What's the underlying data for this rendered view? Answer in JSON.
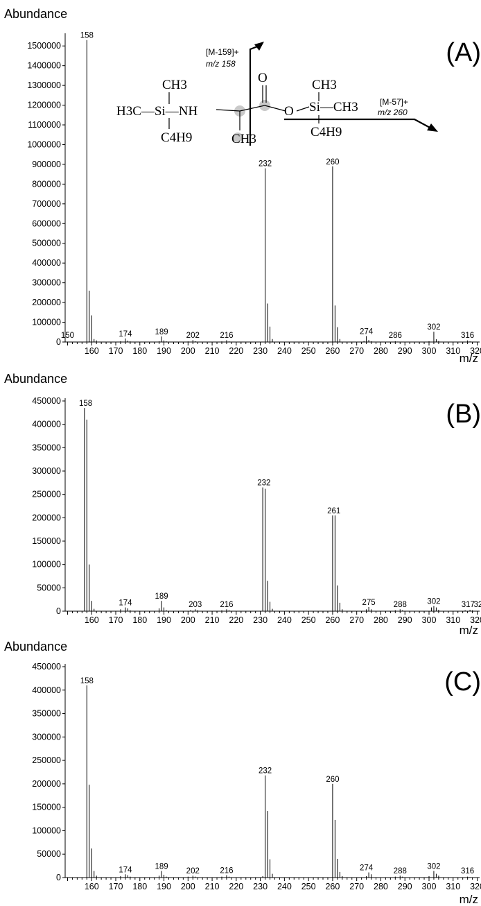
{
  "panels": [
    {
      "id": "A",
      "letter": "(A)",
      "ylabel": "Abundance",
      "xlabel": "m/z",
      "yticks": [
        "1500000",
        "1400000",
        "1300000",
        "1200000",
        "1100000",
        "1000000",
        "900000",
        "800000",
        "700000",
        "600000",
        "500000",
        "400000",
        "300000",
        "200000",
        "100000",
        "0"
      ],
      "xticks": [
        "160",
        "170",
        "180",
        "190",
        "200",
        "210",
        "220",
        "230",
        "240",
        "250",
        "260",
        "270",
        "280",
        "290",
        "300",
        "310",
        "320"
      ],
      "peak_labels": [
        "150",
        "158",
        "174",
        "189",
        "202",
        "216",
        "232",
        "260",
        "274",
        "286",
        "302",
        "316"
      ]
    },
    {
      "id": "B",
      "letter": "(B)",
      "ylabel": "Abundance",
      "xlabel": "m/z",
      "yticks": [
        "450000",
        "400000",
        "350000",
        "300000",
        "250000",
        "200000",
        "150000",
        "100000",
        "50000",
        "0"
      ],
      "xticks": [
        "160",
        "170",
        "180",
        "190",
        "200",
        "210",
        "220",
        "230",
        "240",
        "250",
        "260",
        "270",
        "280",
        "290",
        "300",
        "310",
        "320"
      ],
      "peak_labels": [
        "158",
        "174",
        "189",
        "203",
        "216",
        "232",
        "261",
        "275",
        "288",
        "302",
        "317",
        "32"
      ]
    },
    {
      "id": "C",
      "letter": "(C)",
      "ylabel": "Abundance",
      "xlabel": "m/z",
      "yticks": [
        "450000",
        "400000",
        "350000",
        "300000",
        "250000",
        "200000",
        "150000",
        "100000",
        "50000",
        "0"
      ],
      "xticks": [
        "160",
        "170",
        "180",
        "190",
        "200",
        "210",
        "220",
        "230",
        "240",
        "250",
        "260",
        "270",
        "280",
        "290",
        "300",
        "310",
        "320"
      ],
      "peak_labels": [
        "158",
        "174",
        "189",
        "202",
        "216",
        "232",
        "260",
        "274",
        "288",
        "302",
        "316"
      ]
    }
  ],
  "structure": {
    "left_group": "H3C—Si—NH",
    "methyl_top_left": "CH3",
    "butyl_left": "C4H9",
    "alpha_methyl": "CH3",
    "carbonyl_o": "O",
    "ester_o": "O",
    "si_right": "Si—CH3",
    "methyl_top_right": "CH3",
    "butyl_right": "C4H9",
    "frag1_ion": "[M-159]+",
    "frag1_mz": "m/z 158",
    "frag2_ion": "[M-57]+",
    "frag2_mz": "m/z 260"
  },
  "chart_data": [
    {
      "type": "bar",
      "title": "(A)",
      "xlabel": "m/z",
      "ylabel": "Abundance",
      "xlim": [
        149,
        321
      ],
      "ylim": [
        0,
        1550000
      ],
      "grid": false,
      "x": [
        150,
        158,
        159,
        160,
        161,
        162,
        172,
        174,
        175,
        176,
        188,
        189,
        190,
        191,
        200,
        202,
        203,
        214,
        216,
        217,
        232,
        233,
        234,
        235,
        260,
        261,
        262,
        263,
        273,
        274,
        275,
        276,
        286,
        287,
        300,
        302,
        303,
        304,
        316,
        317
      ],
      "values": [
        2000,
        1530000,
        260000,
        135000,
        15000,
        8000,
        4000,
        18000,
        7000,
        3000,
        4000,
        28000,
        8000,
        3000,
        3000,
        10000,
        4000,
        3000,
        9000,
        3000,
        880000,
        195000,
        78000,
        15000,
        890000,
        185000,
        75000,
        15000,
        5000,
        30000,
        10000,
        4000,
        4000,
        2000,
        4000,
        52000,
        14000,
        5000,
        8000,
        3000
      ]
    },
    {
      "type": "bar",
      "title": "(B)",
      "xlabel": "m/z",
      "ylabel": "Abundance",
      "xlim": [
        149,
        321
      ],
      "ylim": [
        0,
        450000
      ],
      "grid": false,
      "x": [
        157,
        158,
        159,
        160,
        161,
        172,
        174,
        175,
        176,
        188,
        189,
        190,
        191,
        201,
        203,
        204,
        214,
        216,
        217,
        231,
        232,
        233,
        234,
        235,
        260,
        261,
        262,
        263,
        264,
        274,
        275,
        276,
        286,
        288,
        289,
        301,
        302,
        303,
        304,
        315,
        317,
        318
      ],
      "values": [
        435000,
        410000,
        100000,
        22000,
        5000,
        4000,
        8000,
        6000,
        2000,
        6000,
        22000,
        8000,
        2000,
        2000,
        4000,
        2000,
        2000,
        4000,
        2000,
        265000,
        262000,
        65000,
        20000,
        5000,
        205000,
        205000,
        55000,
        18000,
        4000,
        4000,
        9000,
        4000,
        2000,
        4000,
        2000,
        8000,
        11000,
        8000,
        3000,
        2000,
        3000,
        2000
      ]
    },
    {
      "type": "bar",
      "title": "(C)",
      "xlabel": "m/z",
      "ylabel": "Abundance",
      "xlim": [
        149,
        321
      ],
      "ylim": [
        0,
        450000
      ],
      "grid": false,
      "x": [
        158,
        159,
        160,
        161,
        162,
        172,
        174,
        175,
        176,
        188,
        189,
        190,
        191,
        200,
        202,
        203,
        214,
        216,
        217,
        231,
        232,
        233,
        234,
        235,
        260,
        261,
        262,
        263,
        264,
        274,
        275,
        276,
        286,
        288,
        289,
        300,
        302,
        303,
        304,
        316,
        317
      ],
      "values": [
        410000,
        198000,
        62000,
        14000,
        4000,
        3000,
        7000,
        5000,
        2000,
        4000,
        14000,
        6000,
        2000,
        2000,
        4000,
        2000,
        2000,
        5000,
        2000,
        3000,
        218000,
        142000,
        39000,
        8000,
        200000,
        123000,
        40000,
        12000,
        3000,
        3000,
        11000,
        7000,
        2000,
        4000,
        2000,
        3000,
        14000,
        8000,
        4000,
        2000,
        1000
      ]
    }
  ]
}
